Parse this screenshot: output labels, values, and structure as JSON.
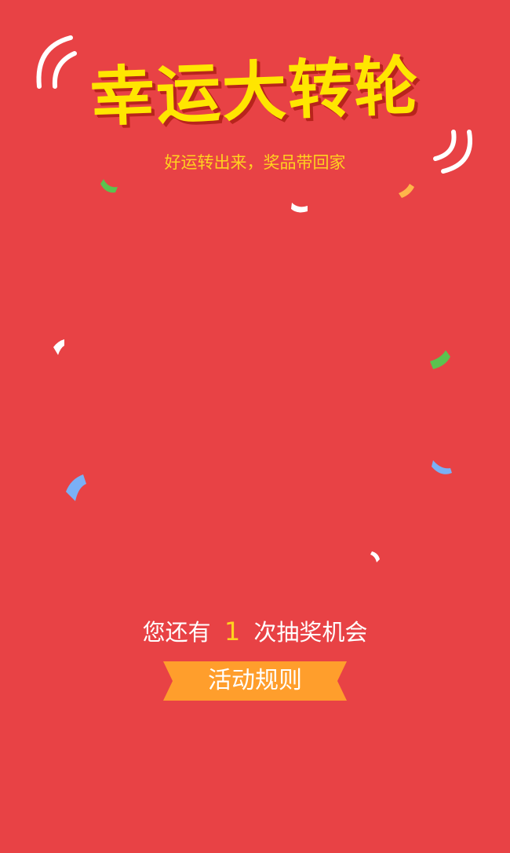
{
  "header": {
    "title": "幸运大转轮",
    "subtitle": "好运转出来，奖品带回家"
  },
  "chances": {
    "prefix": "您还有",
    "count": "1",
    "suffix": "次抽奖机会"
  },
  "rules_button": {
    "label": "活动规则"
  },
  "colors": {
    "background": "#e84245",
    "title_yellow": "#ffe600",
    "subtitle_yellow": "#ffd21f",
    "button_orange": "#ff9e2c"
  }
}
